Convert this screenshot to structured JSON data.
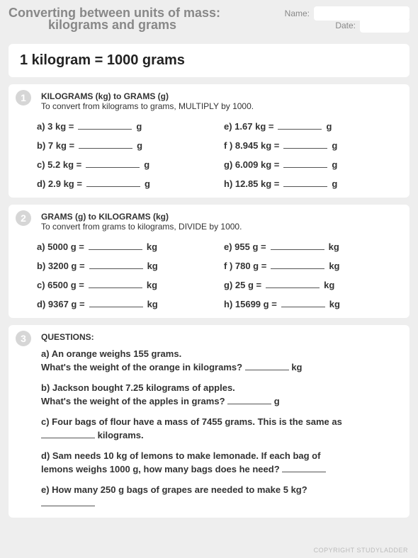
{
  "header": {
    "title_line1": "Converting between units of mass:",
    "title_line2": "kilograms and grams",
    "name_label": "Name:",
    "date_label": "Date:",
    "name_value": "",
    "date_value": ""
  },
  "rule": "1 kilogram = 1000 grams",
  "section1": {
    "badge": "1",
    "heading": "KILOGRAMS (kg) to GRAMS (g)",
    "sub": "To convert from kilograms to grams, MULTIPLY by 1000.",
    "unit": "g",
    "left": [
      {
        "label": "a)  3 kg ="
      },
      {
        "label": "b)  7 kg ="
      },
      {
        "label": "c)  5.2 kg ="
      },
      {
        "label": "d)  2.9 kg ="
      }
    ],
    "right": [
      {
        "label": "e)  1.67 kg ="
      },
      {
        "label": "f )  8.945 kg ="
      },
      {
        "label": "g)  6.009 kg ="
      },
      {
        "label": "h)  12.85 kg ="
      }
    ]
  },
  "section2": {
    "badge": "2",
    "heading": "GRAMS (g) to KILOGRAMS (kg)",
    "sub": "To convert from grams to kilograms, DIVIDE by 1000.",
    "unit": "kg",
    "left": [
      {
        "label": "a)  5000 g ="
      },
      {
        "label": "b)  3200 g ="
      },
      {
        "label": "c)  6500 g ="
      },
      {
        "label": "d)  9367 g ="
      }
    ],
    "right": [
      {
        "label": "e)  955 g ="
      },
      {
        "label": "f )  780 g ="
      },
      {
        "label": "g)  25 g  ="
      },
      {
        "label": "h)  15699 g ="
      }
    ]
  },
  "section3": {
    "badge": "3",
    "heading": "QUESTIONS:",
    "qa": {
      "a1": "a) An orange weighs 155 grams.",
      "a2": "What's the weight of the orange in kilograms?",
      "a_unit": "kg",
      "b1": "b) Jackson bought 7.25 kilograms of apples.",
      "b2": "What's the weight of the apples in grams?",
      "b_unit": "g",
      "c1": "c) Four bags of flour have a mass of 7455 grams. This is the same as",
      "c2": "kilograms.",
      "d1": "d) Sam needs 10 kg of lemons to make lemonade. If each bag of",
      "d2": "lemons weighs 1000 g, how many bags does he need?",
      "e1": "e) How many 250 g bags of grapes are needed to make 5 kg?"
    }
  },
  "copyright": "COPYRIGHT STUDYLADDER"
}
